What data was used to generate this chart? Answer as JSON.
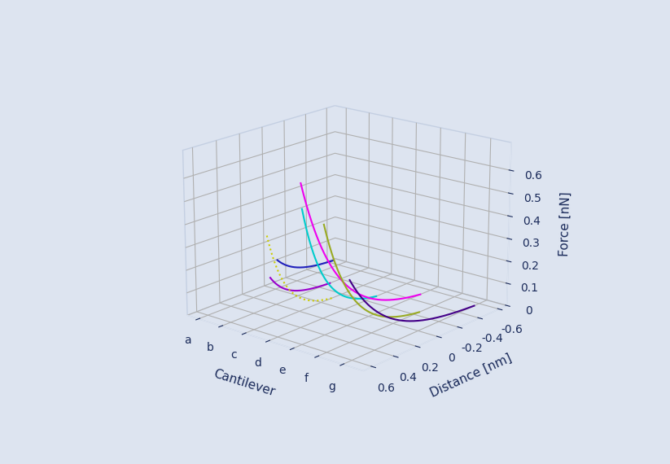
{
  "cantilevers": [
    "a",
    "b",
    "c",
    "d",
    "e",
    "f",
    "g"
  ],
  "cantilever_positions": [
    0,
    1,
    2,
    3,
    4,
    5,
    6
  ],
  "distance_ticks": [
    -0.6,
    -0.4,
    -0.2,
    0,
    0.2,
    0.4,
    0.6
  ],
  "force_ticks": [
    0,
    0.1,
    0.2,
    0.3,
    0.4,
    0.5,
    0.6
  ],
  "zlabel": "Force [nN]",
  "xlabel": "Cantilever",
  "ylabel": "Distance [nm]",
  "background_color": "#dde4f0",
  "pane_color": "#dde4f0",
  "grid_color": "#ffffff",
  "text_color": "#1a2a5a",
  "line_colors": [
    "#2020bb",
    "#9900cc",
    "#cccc00",
    "#00cccc",
    "#ee00ee",
    "#99aa22",
    "#440088"
  ],
  "line_styles": [
    "-",
    "-",
    ":",
    "-",
    "-",
    "-",
    "-"
  ],
  "curve_params": [
    {
      "cidx": 0,
      "d_start": -0.55,
      "d_end": -0.02,
      "f_start": 0.03,
      "f_end": 0.13,
      "k": 3.0
    },
    {
      "cidx": 1,
      "d_start": -0.3,
      "d_end": 0.25,
      "f_start": 0.0,
      "f_end": 0.13,
      "k": 3.5
    },
    {
      "cidx": 2,
      "d_start": -0.1,
      "d_end": 0.48,
      "f_start": 0.0,
      "f_end": 0.39,
      "k": 3.5
    },
    {
      "cidx": 3,
      "d_start": -0.3,
      "d_end": 0.38,
      "f_start": 0.0,
      "f_end": 0.51,
      "k": 3.5
    },
    {
      "cidx": 4,
      "d_start": -0.5,
      "d_end": 0.6,
      "f_start": 0.0,
      "f_end": 0.68,
      "k": 3.5
    },
    {
      "cidx": 5,
      "d_start": -0.25,
      "d_end": 0.62,
      "f_start": 0.0,
      "f_end": 0.54,
      "k": 3.5
    },
    {
      "cidx": 6,
      "d_start": -0.55,
      "d_end": 0.62,
      "f_start": 0.0,
      "f_end": 0.34,
      "k": 3.5
    }
  ],
  "elev": 18,
  "azim": -50,
  "figsize": [
    8.23,
    5.7
  ],
  "dpi": 100,
  "xlim": [
    -0.5,
    6.8
  ],
  "ylim": [
    0.68,
    -0.68
  ],
  "zlim": [
    0,
    0.72
  ]
}
